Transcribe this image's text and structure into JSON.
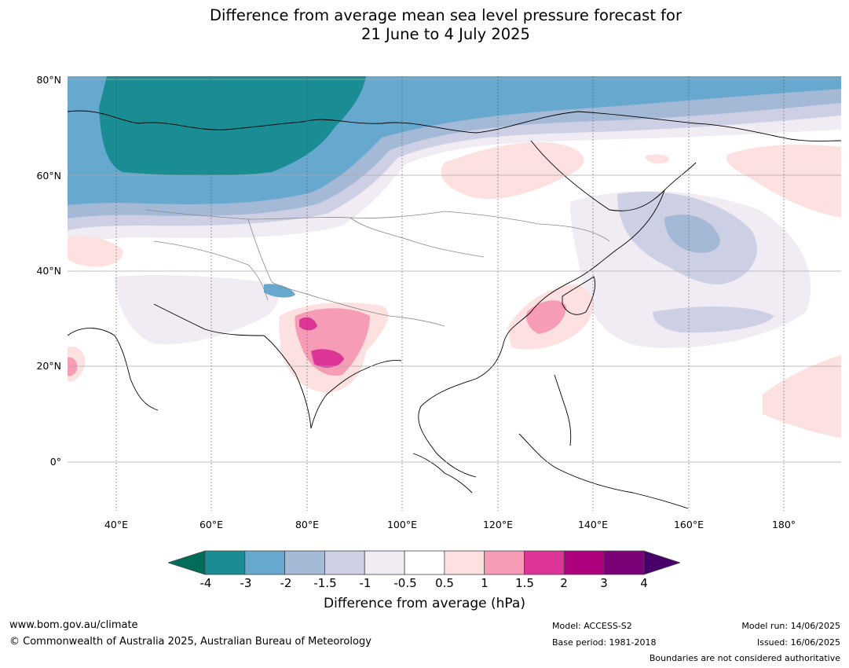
{
  "title_line1": "Difference from average mean sea level pressure forecast for",
  "title_line2": "21 June to 4 July 2025",
  "map": {
    "lat_labels": [
      "80°N",
      "60°N",
      "40°N",
      "20°N",
      "0°"
    ],
    "lon_labels": [
      "40°E",
      "60°E",
      "80°E",
      "100°E",
      "120°E",
      "140°E",
      "160°E",
      "180°"
    ]
  },
  "colorbar": {
    "ticks": [
      "-4",
      "-3",
      "-2",
      "-1.5",
      "-1",
      "-0.5",
      "0.5",
      "1",
      "1.5",
      "2",
      "3",
      "4"
    ],
    "colors": [
      "#1a8c93",
      "#67a8cf",
      "#a4b9d6",
      "#cdd0e4",
      "#f1ecf3",
      "#ffffff",
      "#fde0e0",
      "#f79cb6",
      "#dc3497",
      "#ad017e",
      "#7a0177"
    ],
    "under_color": "#016c59",
    "over_color": "#49006a",
    "label": "Difference from average (hPa)"
  },
  "footer": {
    "website": "www.bom.gov.au/climate",
    "copyright": "© Commonwealth of Australia 2025, Australian Bureau of Meteorology",
    "model": "Model: ACCESS-S2",
    "base_period": "Base period: 1981-2018",
    "model_run": "Model run: 14/06/2025",
    "issued": "Issued: 16/06/2025",
    "disclaimer": "Boundaries are not considered authoritative"
  }
}
